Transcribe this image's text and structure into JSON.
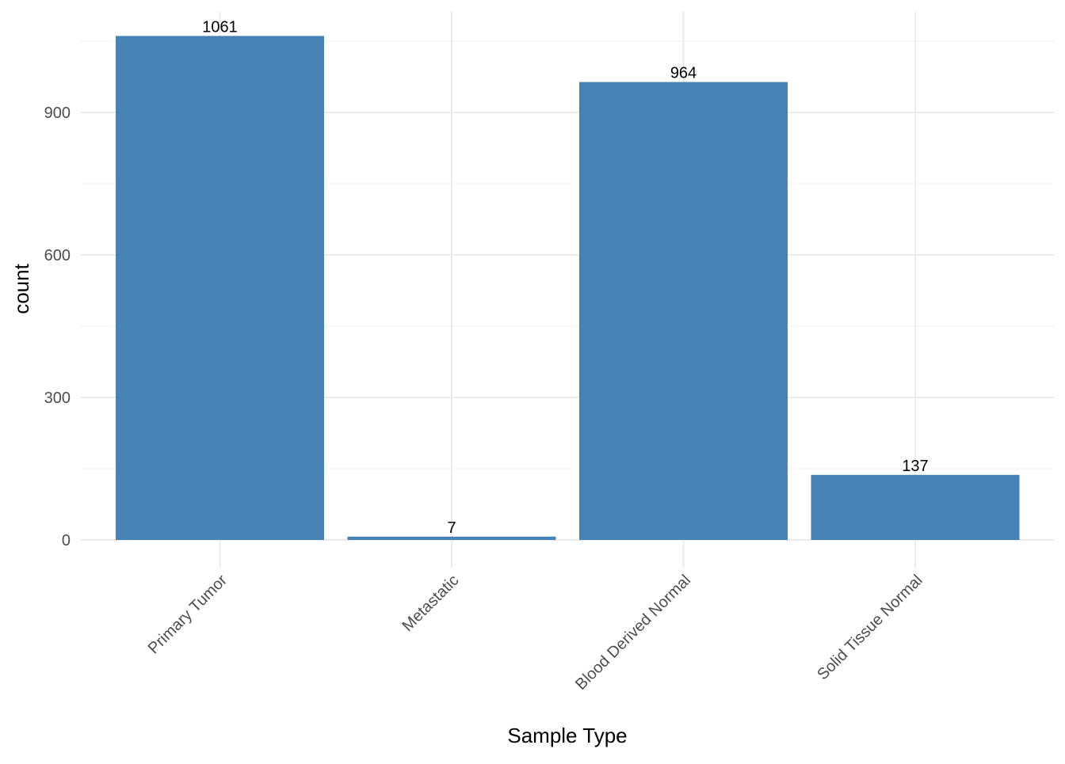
{
  "chart_data": {
    "type": "bar",
    "categories": [
      "Primary Tumor",
      "Metastatic",
      "Blood Derived Normal",
      "Solid Tissue Normal"
    ],
    "values": [
      1061,
      7,
      964,
      137
    ],
    "data_labels": [
      "1061",
      "7",
      "964",
      "137"
    ],
    "title": "",
    "xlabel": "Sample Type",
    "ylabel": "count",
    "ylim": [
      0,
      1114
    ],
    "y_ticks": [
      0,
      300,
      600,
      900
    ],
    "y_tick_labels": [
      "0",
      "300",
      "600",
      "900"
    ],
    "y_minor_ticks": [
      150,
      450,
      750,
      1050
    ],
    "grid": true,
    "legend": "none",
    "bar_color": "#4682b4"
  }
}
